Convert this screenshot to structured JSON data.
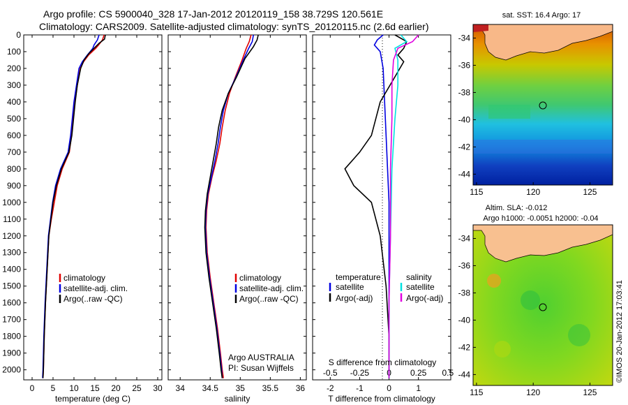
{
  "header": {
    "line1": "Argo profile: CS 5900040_328 17-Jan-2012 20120119_158 38.729S 120.561E",
    "line2": "Climatology: CARS2009. Satellite-adjusted climatology: synTS_20120115.nc (2.6d earlier)"
  },
  "colors": {
    "climatology": "#e00000",
    "satellite": "#0000e0",
    "argo": "#000000",
    "sat_salt": "#00e0e0",
    "argo_salt": "#e000e0"
  },
  "chart_data": [
    {
      "type": "line",
      "name": "temperature",
      "xlabel": "temperature (deg C)",
      "xlim": [
        -2,
        31
      ],
      "xticks": [
        0,
        5,
        10,
        15,
        20,
        25,
        30
      ],
      "ylim": [
        2060,
        0
      ],
      "yticks": [
        0,
        100,
        200,
        300,
        400,
        500,
        600,
        700,
        800,
        900,
        1000,
        1100,
        1200,
        1300,
        1400,
        1500,
        1600,
        1700,
        1800,
        1900,
        2000
      ],
      "legend": [
        "climatology",
        "satellite-adj. clim.",
        "Argo(..raw -QC)"
      ],
      "series": [
        {
          "name": "climatology",
          "color": "#e00000",
          "points": [
            [
              17.2,
              0
            ],
            [
              16.8,
              30
            ],
            [
              15.9,
              60
            ],
            [
              15.2,
              80
            ],
            [
              13.5,
              120
            ],
            [
              12.3,
              160
            ],
            [
              11.5,
              200
            ],
            [
              10.8,
              300
            ],
            [
              10.2,
              400
            ],
            [
              9.8,
              500
            ],
            [
              9.4,
              600
            ],
            [
              8.9,
              700
            ],
            [
              7.2,
              800
            ],
            [
              6.0,
              900
            ],
            [
              5.3,
              1000
            ],
            [
              4.6,
              1100
            ],
            [
              4.0,
              1200
            ],
            [
              3.6,
              1400
            ],
            [
              3.2,
              1600
            ],
            [
              2.9,
              1800
            ],
            [
              2.7,
              2000
            ],
            [
              2.6,
              2050
            ]
          ]
        },
        {
          "name": "satellite-adj. clim.",
          "color": "#0000e0",
          "points": [
            [
              16.0,
              0
            ],
            [
              15.6,
              30
            ],
            [
              14.8,
              60
            ],
            [
              14.5,
              80
            ],
            [
              13.2,
              120
            ],
            [
              12.0,
              160
            ],
            [
              11.2,
              200
            ],
            [
              10.6,
              300
            ],
            [
              10.0,
              400
            ],
            [
              9.6,
              500
            ],
            [
              9.2,
              600
            ],
            [
              8.6,
              700
            ],
            [
              6.8,
              800
            ],
            [
              5.6,
              900
            ],
            [
              4.9,
              1000
            ],
            [
              4.4,
              1100
            ],
            [
              3.9,
              1200
            ],
            [
              3.5,
              1400
            ],
            [
              3.1,
              1600
            ],
            [
              2.8,
              1800
            ],
            [
              2.6,
              2000
            ],
            [
              2.5,
              2050
            ]
          ]
        },
        {
          "name": "Argo(..raw -QC)",
          "color": "#000000",
          "points": [
            [
              17.5,
              0
            ],
            [
              17.3,
              25
            ],
            [
              16.0,
              50
            ],
            [
              15.0,
              75
            ],
            [
              13.6,
              110
            ],
            [
              12.4,
              150
            ],
            [
              11.6,
              200
            ],
            [
              10.8,
              300
            ],
            [
              10.3,
              400
            ],
            [
              9.9,
              500
            ],
            [
              9.5,
              600
            ],
            [
              8.8,
              700
            ],
            [
              7.0,
              800
            ],
            [
              5.8,
              900
            ],
            [
              5.0,
              1000
            ],
            [
              4.5,
              1100
            ],
            [
              4.0,
              1200
            ],
            [
              3.6,
              1400
            ],
            [
              3.2,
              1600
            ],
            [
              2.9,
              1800
            ],
            [
              2.7,
              2000
            ],
            [
              2.6,
              2050
            ]
          ]
        }
      ]
    },
    {
      "type": "line",
      "name": "salinity",
      "xlabel": "salinity",
      "xlim": [
        33.8,
        36.1
      ],
      "xticks": [
        34,
        34.5,
        35,
        35.5,
        36
      ],
      "ylim": [
        2060,
        0
      ],
      "legend": [
        "climatology",
        "satellite-adj. clim.",
        "Argo(..raw -QC)"
      ],
      "annotation": [
        "Argo AUSTRALIA",
        "PI: Susan Wijffels"
      ],
      "series": [
        {
          "name": "climatology",
          "color": "#e00000",
          "points": [
            [
              35.18,
              0
            ],
            [
              35.15,
              40
            ],
            [
              35.1,
              80
            ],
            [
              35.03,
              150
            ],
            [
              34.92,
              250
            ],
            [
              34.82,
              350
            ],
            [
              34.75,
              450
            ],
            [
              34.7,
              550
            ],
            [
              34.66,
              650
            ],
            [
              34.6,
              750
            ],
            [
              34.53,
              850
            ],
            [
              34.47,
              950
            ],
            [
              34.44,
              1050
            ],
            [
              34.43,
              1150
            ],
            [
              34.45,
              1300
            ],
            [
              34.5,
              1450
            ],
            [
              34.56,
              1600
            ],
            [
              34.62,
              1750
            ],
            [
              34.67,
              1900
            ],
            [
              34.7,
              2000
            ],
            [
              34.72,
              2050
            ]
          ]
        },
        {
          "name": "satellite-adj. clim.",
          "color": "#0000e0",
          "points": [
            [
              35.22,
              0
            ],
            [
              35.2,
              40
            ],
            [
              35.14,
              80
            ],
            [
              35.05,
              150
            ],
            [
              34.93,
              250
            ],
            [
              34.8,
              350
            ],
            [
              34.72,
              450
            ],
            [
              34.67,
              550
            ],
            [
              34.63,
              650
            ],
            [
              34.58,
              750
            ],
            [
              34.52,
              850
            ],
            [
              34.46,
              950
            ],
            [
              34.43,
              1050
            ],
            [
              34.42,
              1150
            ],
            [
              34.44,
              1300
            ],
            [
              34.49,
              1450
            ],
            [
              34.55,
              1600
            ],
            [
              34.61,
              1750
            ],
            [
              34.66,
              1900
            ],
            [
              34.69,
              2000
            ],
            [
              34.7,
              2050
            ]
          ]
        },
        {
          "name": "Argo(..raw -QC)",
          "color": "#000000",
          "points": [
            [
              35.3,
              0
            ],
            [
              35.28,
              30
            ],
            [
              35.22,
              70
            ],
            [
              35.08,
              140
            ],
            [
              34.94,
              250
            ],
            [
              34.8,
              350
            ],
            [
              34.7,
              450
            ],
            [
              34.64,
              550
            ],
            [
              34.6,
              650
            ],
            [
              34.55,
              750
            ],
            [
              34.5,
              850
            ],
            [
              34.45,
              950
            ],
            [
              34.42,
              1050
            ],
            [
              34.41,
              1150
            ],
            [
              34.43,
              1300
            ],
            [
              34.48,
              1450
            ],
            [
              34.54,
              1600
            ],
            [
              34.6,
              1750
            ],
            [
              34.65,
              1900
            ],
            [
              34.68,
              2000
            ],
            [
              34.7,
              2050
            ]
          ]
        }
      ]
    },
    {
      "type": "line",
      "name": "difference",
      "xlabel": "T difference from climatology",
      "xlabel2": "S difference from climatology",
      "xlim": [
        -2.6,
        2.1
      ],
      "xticks": [
        -2,
        -1,
        0,
        1
      ],
      "xticks_s": [
        "-0.5",
        "-0.25",
        "0",
        "0.25",
        "0.5"
      ],
      "xticks_s_at": [
        -2,
        -1,
        0,
        1,
        2
      ],
      "ylim": [
        2060,
        0
      ],
      "legend_left": {
        "head": "temperature",
        "items": [
          "satellite",
          "Argo(-adj)"
        ]
      },
      "legend_right": {
        "head": "salinity",
        "items": [
          "satellite",
          "Argo(-adj)"
        ]
      },
      "series": [
        {
          "name": "T satellite",
          "color": "#0000e0",
          "points": [
            [
              -0.2,
              0
            ],
            [
              -0.4,
              30
            ],
            [
              -0.5,
              60
            ],
            [
              -0.3,
              100
            ],
            [
              -0.2,
              200
            ],
            [
              -0.15,
              400
            ],
            [
              -0.1,
              600
            ],
            [
              -0.05,
              800
            ],
            [
              0,
              1000
            ],
            [
              0,
              1500
            ],
            [
              0,
              2050
            ]
          ]
        },
        {
          "name": "T Argo(-adj)",
          "color": "#000000",
          "points": [
            [
              0.2,
              0
            ],
            [
              0.6,
              40
            ],
            [
              0.5,
              80
            ],
            [
              0.3,
              120
            ],
            [
              0.5,
              160
            ],
            [
              0.2,
              250
            ],
            [
              -0.3,
              400
            ],
            [
              -0.6,
              600
            ],
            [
              -1.0,
              700
            ],
            [
              -1.5,
              800
            ],
            [
              -1.2,
              900
            ],
            [
              -0.6,
              1000
            ],
            [
              -0.3,
              1200
            ],
            [
              -0.1,
              1500
            ],
            [
              0,
              1800
            ],
            [
              0,
              2050
            ]
          ]
        },
        {
          "name": "S satellite",
          "color": "#00e0e0",
          "points": [
            [
              0.4,
              0
            ],
            [
              0.6,
              40
            ],
            [
              0.2,
              80
            ],
            [
              0.3,
              150
            ],
            [
              0.3,
              300
            ],
            [
              0.2,
              500
            ],
            [
              0.1,
              800
            ],
            [
              0.05,
              1200
            ],
            [
              0,
              1600
            ],
            [
              0,
              2050
            ]
          ]
        },
        {
          "name": "S Argo(-adj)",
          "color": "#e000e0",
          "points": [
            [
              1.0,
              0
            ],
            [
              0.8,
              40
            ],
            [
              0.3,
              80
            ],
            [
              0.15,
              150
            ],
            [
              0.1,
              300
            ],
            [
              0.1,
              500
            ],
            [
              0.05,
              800
            ],
            [
              0.05,
              1200
            ],
            [
              0,
              1600
            ],
            [
              0,
              2050
            ]
          ]
        }
      ]
    }
  ],
  "maps": {
    "sst": {
      "title": "sat. SST: 16.4  Argo: 17",
      "xticks": [
        "115",
        "120",
        "125"
      ],
      "yticks": [
        "-34",
        "-36",
        "-38",
        "-40",
        "-42",
        "-44"
      ]
    },
    "sla": {
      "title1": "Altim. SLA: -0.012",
      "title2": "Argo h1000: -0.0051 h2000: -0.04",
      "xticks": [
        "115",
        "120",
        "125"
      ],
      "yticks": [
        "-34",
        "-36",
        "-38",
        "-40",
        "-42",
        "-44"
      ]
    }
  },
  "credit": "©IMOS 20-Jan-2012 17:03:41"
}
